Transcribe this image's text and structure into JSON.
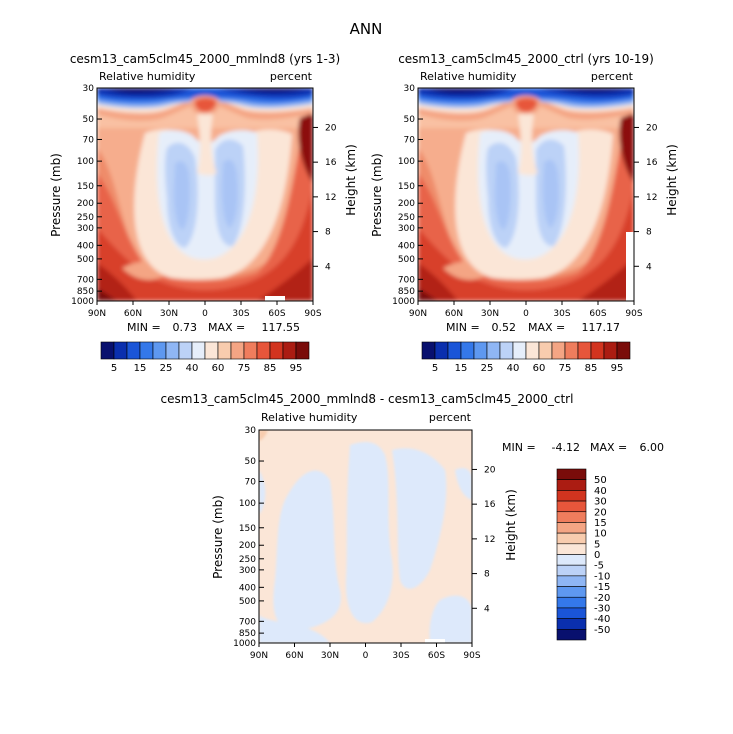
{
  "figure": {
    "title": "ANN"
  },
  "colors": {
    "rh_palette": [
      "#08106e",
      "#0a2fae",
      "#1a55d8",
      "#3478ea",
      "#5e98f0",
      "#8fb6f4",
      "#bcd2f7",
      "#e6eefa",
      "#fbe6d7",
      "#f8ccae",
      "#f4a584",
      "#ef7d5d",
      "#e7563b",
      "#d2341f",
      "#ab1c12",
      "#7a0c0a"
    ],
    "diff_palette": [
      "#08106e",
      "#0a2fae",
      "#1a55d8",
      "#3478ea",
      "#5e98f0",
      "#8fb6f4",
      "#bcd2f7",
      "#dde9fb",
      "#fbe6d7",
      "#f8ccae",
      "#f4a584",
      "#ef7d5d",
      "#e7563b",
      "#d2341f",
      "#ab1c12",
      "#7a0c0a"
    ]
  },
  "chart_data": [
    {
      "type": "heatmap",
      "title": "cesm13_cam5clm45_2000_mmlnd8 (yrs 1-3)",
      "variable_label": "Relative humidity",
      "units_label": "percent",
      "ylabel": "Pressure (mb)",
      "y2label": "Height (km)",
      "x_ticks": [
        "90N",
        "60N",
        "30N",
        "0",
        "30S",
        "60S",
        "90S"
      ],
      "y_ticks": [
        "30",
        "50",
        "70",
        "100",
        "150",
        "200",
        "250",
        "300",
        "400",
        "500",
        "700",
        "850",
        "1000"
      ],
      "y_tick_values": [
        30,
        50,
        70,
        100,
        150,
        200,
        250,
        300,
        400,
        500,
        700,
        850,
        1000
      ],
      "y2_ticks": [
        "20",
        "16",
        "12",
        "8",
        "4"
      ],
      "y2_tick_values": [
        20,
        16,
        12,
        8,
        4
      ],
      "ylim": [
        1000,
        30
      ],
      "stats": {
        "min_label": "MIN =",
        "min": "0.73",
        "max_label": "MAX =",
        "max": "117.55"
      },
      "colorbar_labels": [
        "5",
        "15",
        "25",
        "40",
        "60",
        "75",
        "85",
        "95"
      ]
    },
    {
      "type": "heatmap",
      "title": "cesm13_cam5clm45_2000_ctrl (yrs 10-19)",
      "variable_label": "Relative humidity",
      "units_label": "percent",
      "ylabel": "Pressure (mb)",
      "y2label": "Height (km)",
      "x_ticks": [
        "90N",
        "60N",
        "30N",
        "0",
        "30S",
        "60S",
        "90S"
      ],
      "y_ticks": [
        "30",
        "50",
        "70",
        "100",
        "150",
        "200",
        "250",
        "300",
        "400",
        "500",
        "700",
        "850",
        "1000"
      ],
      "y_tick_values": [
        30,
        50,
        70,
        100,
        150,
        200,
        250,
        300,
        400,
        500,
        700,
        850,
        1000
      ],
      "y2_ticks": [
        "20",
        "16",
        "12",
        "8",
        "4"
      ],
      "y2_tick_values": [
        20,
        16,
        12,
        8,
        4
      ],
      "ylim": [
        1000,
        30
      ],
      "stats": {
        "min_label": "MIN =",
        "min": "0.52",
        "max_label": "MAX =",
        "max": "117.17"
      },
      "colorbar_labels": [
        "5",
        "15",
        "25",
        "40",
        "60",
        "75",
        "85",
        "95"
      ]
    },
    {
      "type": "heatmap",
      "title": "cesm13_cam5clm45_2000_mmlnd8 - cesm13_cam5clm45_2000_ctrl",
      "variable_label": "Relative humidity",
      "units_label": "percent",
      "ylabel": "Pressure (mb)",
      "y2label": "Height (km)",
      "x_ticks": [
        "90N",
        "60N",
        "30N",
        "0",
        "30S",
        "60S",
        "90S"
      ],
      "y_ticks": [
        "30",
        "50",
        "70",
        "100",
        "150",
        "200",
        "250",
        "300",
        "400",
        "500",
        "700",
        "850",
        "1000"
      ],
      "y_tick_values": [
        30,
        50,
        70,
        100,
        150,
        200,
        250,
        300,
        400,
        500,
        700,
        850,
        1000
      ],
      "y2_ticks": [
        "20",
        "16",
        "12",
        "8",
        "4"
      ],
      "y2_tick_values": [
        20,
        16,
        12,
        8,
        4
      ],
      "ylim": [
        1000,
        30
      ],
      "stats": {
        "min_label": "MIN =",
        "min": "-4.12",
        "max_label": "MAX =",
        "max": "6.00"
      },
      "colorbar_labels": [
        "50",
        "40",
        "30",
        "20",
        "15",
        "10",
        "5",
        "0",
        "-5",
        "-10",
        "-15",
        "-20",
        "-30",
        "-40",
        "-50"
      ]
    }
  ]
}
